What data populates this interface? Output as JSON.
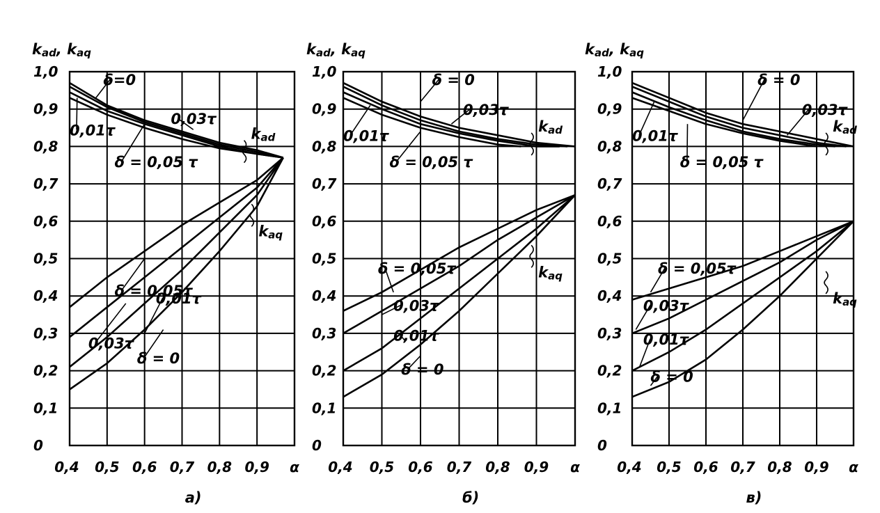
{
  "chart_data": [
    {
      "type": "line",
      "caption": "a)",
      "ylabel": "k_ad, k_aq",
      "xlabel": "α",
      "xlim": [
        0.4,
        1.0
      ],
      "ylim": [
        0,
        1.0
      ],
      "x_ticks": [
        "0,4",
        "0,5",
        "0,6",
        "0,7",
        "0,8",
        "0,9",
        "α"
      ],
      "y_ticks": [
        "0",
        "0,1",
        "0,2",
        "0,3",
        "0,4",
        "0,5",
        "0,6",
        "0,7",
        "0,8",
        "0,9",
        "1,0"
      ],
      "grid": true,
      "group_labels": {
        "kad": "k_ad",
        "kaq": "k_aq"
      },
      "series": [
        {
          "name": "δ=0",
          "group": "kad",
          "x": [
            0.4,
            0.5,
            0.6,
            0.7,
            0.8,
            0.9,
            0.97
          ],
          "y": [
            0.97,
            0.91,
            0.87,
            0.84,
            0.81,
            0.79,
            0.77
          ]
        },
        {
          "name": "0,01τ",
          "group": "kad",
          "x": [
            0.4,
            0.5,
            0.6,
            0.7,
            0.8,
            0.9,
            0.97
          ],
          "y": [
            0.96,
            0.905,
            0.865,
            0.835,
            0.805,
            0.785,
            0.77
          ]
        },
        {
          "name": "0,03τ",
          "group": "kad",
          "x": [
            0.4,
            0.5,
            0.6,
            0.7,
            0.8,
            0.9,
            0.97
          ],
          "y": [
            0.945,
            0.895,
            0.86,
            0.83,
            0.8,
            0.78,
            0.77
          ]
        },
        {
          "name": "δ = 0,05 τ",
          "group": "kad",
          "x": [
            0.4,
            0.5,
            0.6,
            0.7,
            0.8,
            0.9,
            0.97
          ],
          "y": [
            0.93,
            0.885,
            0.85,
            0.82,
            0.795,
            0.78,
            0.77
          ]
        },
        {
          "name": "δ = 0,05τ",
          "group": "kaq",
          "x": [
            0.4,
            0.5,
            0.6,
            0.7,
            0.8,
            0.9,
            0.97
          ],
          "y": [
            0.37,
            0.45,
            0.52,
            0.59,
            0.65,
            0.71,
            0.77
          ]
        },
        {
          "name": "0,03τ",
          "group": "kaq",
          "x": [
            0.4,
            0.5,
            0.6,
            0.7,
            0.8,
            0.9,
            0.97
          ],
          "y": [
            0.29,
            0.37,
            0.45,
            0.53,
            0.61,
            0.69,
            0.77
          ]
        },
        {
          "name": "0,01τ",
          "group": "kaq",
          "x": [
            0.4,
            0.5,
            0.6,
            0.7,
            0.8,
            0.9,
            0.97
          ],
          "y": [
            0.21,
            0.29,
            0.38,
            0.47,
            0.57,
            0.67,
            0.77
          ]
        },
        {
          "name": "δ = 0",
          "group": "kaq",
          "x": [
            0.4,
            0.5,
            0.6,
            0.7,
            0.8,
            0.9,
            0.97
          ],
          "y": [
            0.15,
            0.22,
            0.31,
            0.41,
            0.52,
            0.64,
            0.77
          ]
        }
      ]
    },
    {
      "type": "line",
      "caption": "б)",
      "ylabel": "k_ad, k_aq",
      "xlabel": "α",
      "xlim": [
        0.4,
        1.0
      ],
      "ylim": [
        0,
        1.0
      ],
      "x_ticks": [
        "0,4",
        "0,5",
        "0,6",
        "0,7",
        "0,8",
        "0,9",
        "α"
      ],
      "y_ticks": [
        "0",
        "0,1",
        "0,2",
        "0,3",
        "0,4",
        "0,5",
        "0,6",
        "0,7",
        "0,8",
        "0,9",
        "1,0"
      ],
      "grid": true,
      "group_labels": {
        "kad": "k_ad",
        "kaq": "k_aq"
      },
      "series": [
        {
          "name": "δ = 0",
          "group": "kad",
          "x": [
            0.4,
            0.5,
            0.6,
            0.7,
            0.8,
            0.9,
            1.0
          ],
          "y": [
            0.97,
            0.92,
            0.88,
            0.85,
            0.83,
            0.81,
            0.8
          ]
        },
        {
          "name": "0,01τ",
          "group": "kad",
          "x": [
            0.4,
            0.5,
            0.6,
            0.7,
            0.8,
            0.9,
            0.98
          ],
          "y": [
            0.96,
            0.91,
            0.87,
            0.84,
            0.82,
            0.805,
            0.8
          ]
        },
        {
          "name": "0,03τ",
          "group": "kad",
          "x": [
            0.4,
            0.5,
            0.6,
            0.7,
            0.8,
            0.9,
            0.96
          ],
          "y": [
            0.945,
            0.9,
            0.86,
            0.835,
            0.815,
            0.8,
            0.8
          ]
        },
        {
          "name": "δ = 0,05 τ",
          "group": "kad",
          "x": [
            0.4,
            0.5,
            0.6,
            0.7,
            0.8,
            0.86
          ],
          "y": [
            0.93,
            0.885,
            0.85,
            0.825,
            0.805,
            0.8
          ]
        },
        {
          "name": "δ = 0,05τ",
          "group": "kaq",
          "x": [
            0.4,
            0.5,
            0.6,
            0.7,
            0.8,
            0.9,
            1.0
          ],
          "y": [
            0.36,
            0.41,
            0.47,
            0.53,
            0.58,
            0.63,
            0.67
          ]
        },
        {
          "name": "0,03τ",
          "group": "kaq",
          "x": [
            0.4,
            0.5,
            0.6,
            0.7,
            0.8,
            0.9,
            1.0
          ],
          "y": [
            0.3,
            0.36,
            0.42,
            0.48,
            0.55,
            0.61,
            0.67
          ]
        },
        {
          "name": "0,01τ",
          "group": "kaq",
          "x": [
            0.4,
            0.5,
            0.6,
            0.7,
            0.8,
            0.9,
            1.0
          ],
          "y": [
            0.2,
            0.26,
            0.34,
            0.42,
            0.5,
            0.58,
            0.67
          ]
        },
        {
          "name": "δ = 0",
          "group": "kaq",
          "x": [
            0.4,
            0.5,
            0.6,
            0.7,
            0.8,
            0.9,
            1.0
          ],
          "y": [
            0.13,
            0.19,
            0.27,
            0.36,
            0.46,
            0.56,
            0.67
          ]
        }
      ]
    },
    {
      "type": "line",
      "caption": "в)",
      "ylabel": "k_ad, k_aq",
      "xlabel": "α",
      "xlim": [
        0.4,
        1.0
      ],
      "ylim": [
        0,
        1.0
      ],
      "x_ticks": [
        "0,4",
        "0,5",
        "0,6",
        "0,7",
        "0,8",
        "0,9",
        "α"
      ],
      "y_ticks": [
        "0",
        "0,1",
        "0,2",
        "0,3",
        "0,4",
        "0,5",
        "0,6",
        "0,7",
        "0,8",
        "0,9",
        "1,0"
      ],
      "grid": true,
      "group_labels": {
        "kad": "k_ad",
        "kaq": "k_aq"
      },
      "series": [
        {
          "name": "δ = 0",
          "group": "kad",
          "x": [
            0.4,
            0.5,
            0.6,
            0.7,
            0.8,
            0.9,
            1.0
          ],
          "y": [
            0.97,
            0.93,
            0.89,
            0.86,
            0.84,
            0.82,
            0.8
          ]
        },
        {
          "name": "0,01τ",
          "group": "kad",
          "x": [
            0.4,
            0.5,
            0.6,
            0.7,
            0.8,
            0.9,
            0.98
          ],
          "y": [
            0.96,
            0.92,
            0.88,
            0.85,
            0.83,
            0.81,
            0.8
          ]
        },
        {
          "name": "0,03τ",
          "group": "kad",
          "x": [
            0.4,
            0.5,
            0.6,
            0.7,
            0.8,
            0.9,
            0.95
          ],
          "y": [
            0.945,
            0.905,
            0.87,
            0.84,
            0.82,
            0.805,
            0.8
          ]
        },
        {
          "name": "δ = 0,05 τ",
          "group": "kad",
          "x": [
            0.4,
            0.5,
            0.6,
            0.7,
            0.8,
            0.9
          ],
          "y": [
            0.93,
            0.895,
            0.86,
            0.835,
            0.815,
            0.8
          ]
        },
        {
          "name": "δ = 0,05τ",
          "group": "kaq",
          "x": [
            0.4,
            0.5,
            0.6,
            0.7,
            0.8,
            0.9,
            1.0
          ],
          "y": [
            0.39,
            0.42,
            0.45,
            0.48,
            0.52,
            0.56,
            0.6
          ]
        },
        {
          "name": "0,03τ",
          "group": "kaq",
          "x": [
            0.4,
            0.5,
            0.6,
            0.7,
            0.8,
            0.9,
            1.0
          ],
          "y": [
            0.3,
            0.34,
            0.39,
            0.44,
            0.49,
            0.55,
            0.6
          ]
        },
        {
          "name": "0,01τ",
          "group": "kaq",
          "x": [
            0.4,
            0.5,
            0.6,
            0.7,
            0.8,
            0.9,
            1.0
          ],
          "y": [
            0.2,
            0.25,
            0.31,
            0.38,
            0.45,
            0.52,
            0.6
          ]
        },
        {
          "name": "δ = 0",
          "group": "kaq",
          "x": [
            0.4,
            0.5,
            0.6,
            0.7,
            0.8,
            0.9,
            1.0
          ],
          "y": [
            0.13,
            0.17,
            0.23,
            0.31,
            0.4,
            0.5,
            0.6
          ]
        }
      ]
    }
  ]
}
